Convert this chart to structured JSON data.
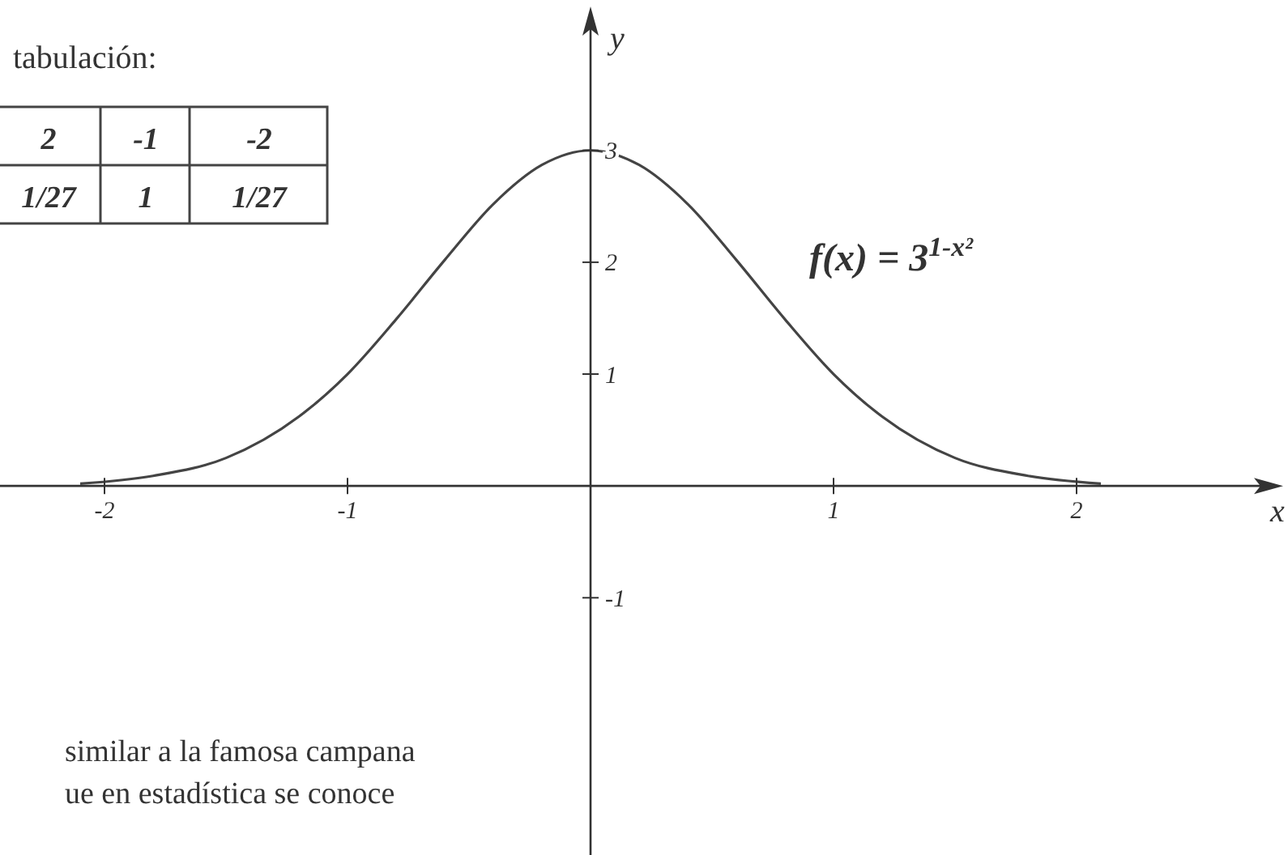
{
  "chart_data": {
    "type": "line",
    "xlabel": "x",
    "ylabel": "y",
    "x": [
      -2.1,
      -1.8,
      -1.5,
      -1.2,
      -1,
      -0.8,
      -0.6,
      -0.4,
      -0.2,
      0,
      0.2,
      0.4,
      0.6,
      0.8,
      1,
      1.2,
      1.5,
      1.8,
      2.1
    ],
    "series": [
      {
        "color": "#444444",
        "values": [
          0.02,
          0.09,
          0.25,
          0.62,
          1,
          1.49,
          2.02,
          2.52,
          2.87,
          3,
          2.87,
          2.52,
          2.02,
          1.49,
          1,
          0.62,
          0.25,
          0.09,
          0.02
        ]
      }
    ],
    "xlim": [
      -2.43,
      2.77
    ],
    "ylim": [
      -3.3,
      4.2
    ],
    "xticks": [
      -2,
      -1,
      1,
      2
    ],
    "yticks": [
      -1,
      1,
      2,
      3
    ],
    "grid": false,
    "marker": "none",
    "line_style": "solid",
    "annotations": [
      "tabulación:",
      "2",
      "-1",
      "-2",
      "1/27",
      "1",
      "1/27",
      "f(x) = 3$^{1-x²}$",
      "similar a la famosa campana",
      "ue en estadística se conoce"
    ]
  }
}
